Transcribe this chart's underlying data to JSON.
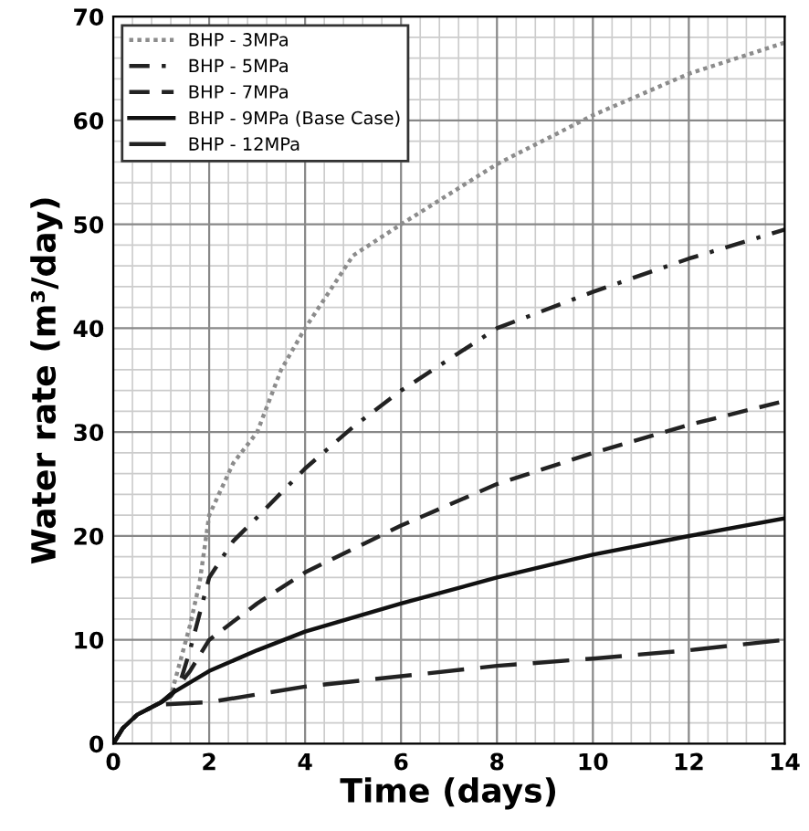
{
  "chart_data": {
    "type": "line",
    "xlabel": "Time (days)",
    "ylabel": "Water rate (m³/day)",
    "xlim": [
      0,
      14
    ],
    "ylim": [
      0,
      70
    ],
    "xticks": [
      0,
      2,
      4,
      6,
      8,
      10,
      12,
      14
    ],
    "yticks": [
      0,
      10,
      20,
      30,
      40,
      50,
      60,
      70
    ],
    "grid": true,
    "legend": "top left",
    "series": [
      {
        "name": "BHP - 3MPa",
        "color": "#8c8c8c",
        "line_style": "dotted",
        "x": [
          0,
          0.2,
          0.5,
          1.0,
          1.2,
          1.4,
          1.6,
          1.8,
          2,
          2.5,
          3,
          3.5,
          4,
          5,
          6,
          8,
          10,
          12,
          14
        ],
        "values": [
          0,
          1.5,
          2.8,
          4.0,
          4.6,
          8,
          11.4,
          15.5,
          22,
          27,
          30,
          36,
          40,
          47,
          50,
          55.8,
          60.5,
          64.5,
          67.5
        ]
      },
      {
        "name": "BHP - 5MPa",
        "color": "#222222",
        "line_style": "dashdot",
        "x": [
          0,
          0.2,
          0.5,
          1.0,
          1.2,
          1.4,
          1.6,
          2,
          2.5,
          3,
          4,
          5,
          6,
          8,
          10,
          12,
          14
        ],
        "values": [
          0,
          1.5,
          2.8,
          4.0,
          4.6,
          6,
          9,
          16,
          19.5,
          21.8,
          26.5,
          30.5,
          34,
          40,
          43.5,
          46.7,
          49.5
        ]
      },
      {
        "name": "BHP - 7MPa",
        "color": "#222222",
        "line_style": "dashed",
        "x": [
          0,
          0.2,
          0.5,
          1.0,
          1.2,
          1.6,
          2,
          3,
          4,
          6,
          8,
          10,
          12,
          14
        ],
        "values": [
          0,
          1.5,
          2.8,
          4.0,
          4.6,
          7,
          10,
          13.5,
          16.5,
          21,
          25,
          28,
          30.7,
          33
        ]
      },
      {
        "name": "BHP - 9MPa (Base Case)",
        "color": "#111111",
        "line_style": "solid",
        "x": [
          0,
          0.2,
          0.5,
          1.0,
          1.2,
          2,
          3,
          4,
          6,
          8,
          10,
          12,
          14
        ],
        "values": [
          0,
          1.5,
          2.8,
          4.0,
          4.8,
          7,
          9,
          10.8,
          13.5,
          16,
          18.2,
          20,
          21.7
        ]
      },
      {
        "name": "BHP - 12MPa",
        "color": "#222222",
        "line_style": "longdash",
        "x": [
          1.1,
          2,
          4,
          6,
          8,
          10,
          12,
          14
        ],
        "values": [
          3.8,
          4.0,
          5.5,
          6.5,
          7.5,
          8.2,
          9.0,
          10
        ]
      }
    ]
  }
}
